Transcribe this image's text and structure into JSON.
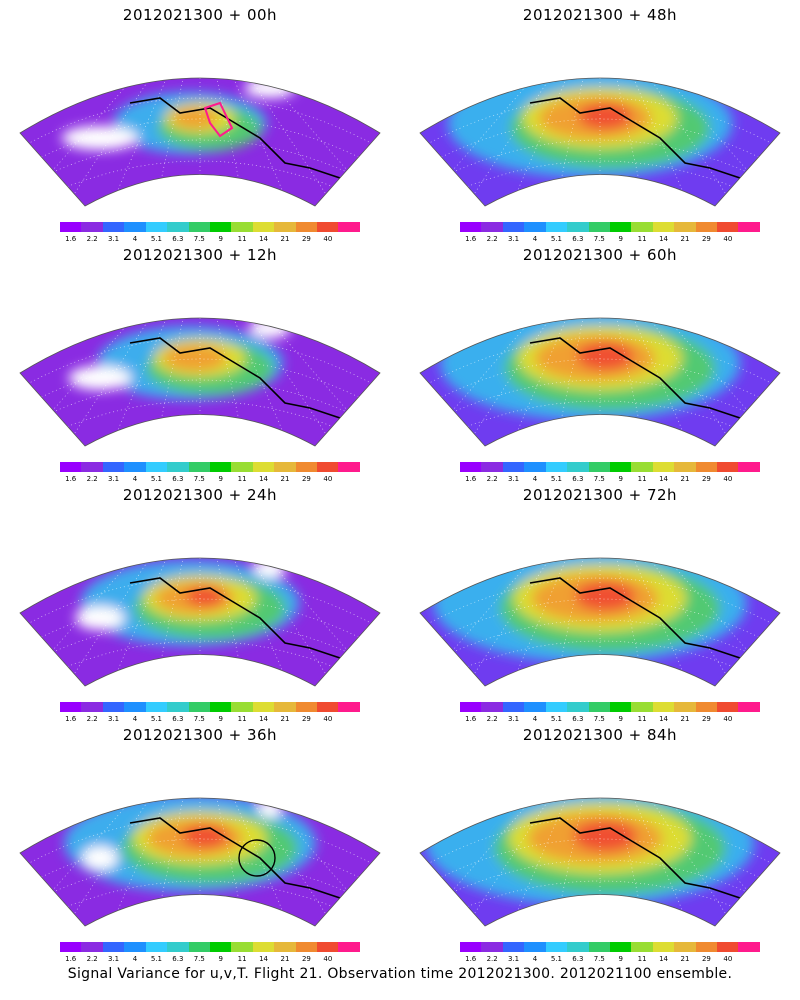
{
  "panels": [
    {
      "title": "2012021300 + 00h",
      "intensity": 0.15,
      "ring": "magenta-loop"
    },
    {
      "title": "2012021300 + 48h",
      "intensity": 0.75,
      "ring": ""
    },
    {
      "title": "2012021300 + 12h",
      "intensity": 0.3,
      "ring": ""
    },
    {
      "title": "2012021300 + 60h",
      "intensity": 0.82,
      "ring": ""
    },
    {
      "title": "2012021300 + 24h",
      "intensity": 0.45,
      "ring": ""
    },
    {
      "title": "2012021300 + 72h",
      "intensity": 0.88,
      "ring": ""
    },
    {
      "title": "2012021300 + 36h",
      "intensity": 0.6,
      "ring": "black-circle"
    },
    {
      "title": "2012021300 + 84h",
      "intensity": 0.95,
      "ring": ""
    }
  ],
  "colorbar": {
    "labels": [
      "1.6",
      "2.2",
      "3.1",
      "4",
      "5.1",
      "6.3",
      "7.5",
      "9",
      "11",
      "14",
      "21",
      "29",
      "40"
    ],
    "colors": [
      "#9900ff",
      "#8a2be2",
      "#3366ff",
      "#1e90ff",
      "#33ccff",
      "#33cccc",
      "#33cc66",
      "#00cc00",
      "#99dd33",
      "#dddd33",
      "#e6b83a",
      "#f08a30",
      "#f04a30",
      "#ff1a8c"
    ]
  },
  "footer": "Signal Variance for u,v,T. Flight 21. Observation time 2012021300. 2012021100 ensemble."
}
